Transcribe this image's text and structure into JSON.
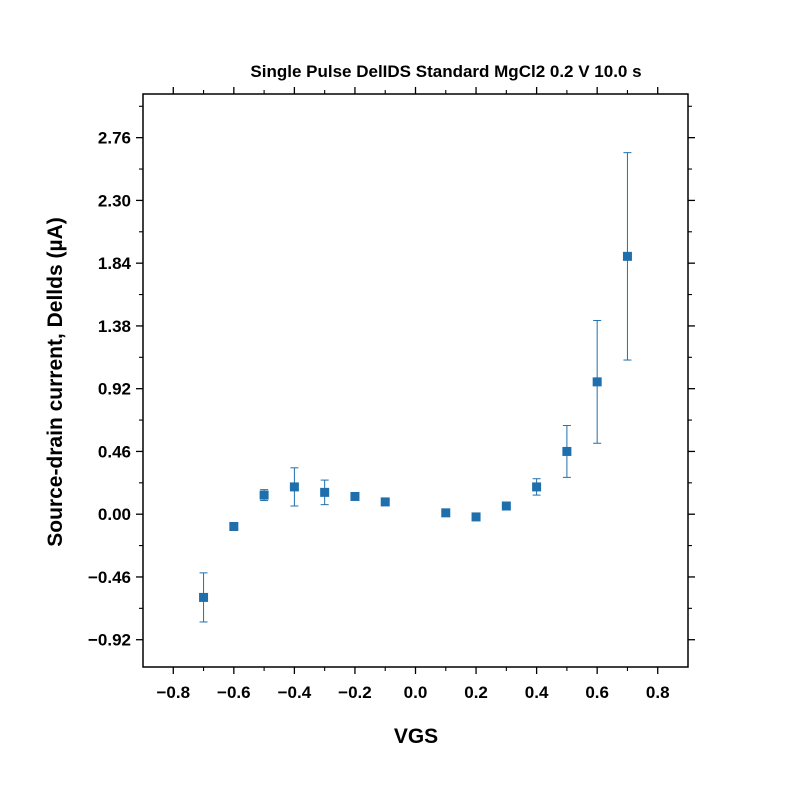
{
  "chart_data": {
    "type": "scatter",
    "title": "Single Pulse DelIDS Standard MgCl2 0.2 V 10.0 s",
    "xlabel": "VGS",
    "ylabel": "Source-drain current, Dellds (µA)",
    "xlim": [
      -0.9,
      0.9
    ],
    "ylim": [
      -1.12,
      3.08
    ],
    "x_ticks": [
      -0.8,
      -0.6,
      -0.4,
      -0.2,
      0.0,
      0.2,
      0.4,
      0.6,
      0.8
    ],
    "x_tick_labels": [
      "−0.8",
      "−0.6",
      "−0.4",
      "−0.2",
      "0.0",
      "0.2",
      "0.4",
      "0.6",
      "0.8"
    ],
    "y_ticks": [
      -0.92,
      -0.46,
      0.0,
      0.46,
      0.92,
      1.38,
      1.84,
      2.3,
      2.76
    ],
    "y_tick_labels": [
      "−0.92",
      "−0.46",
      "0.00",
      "0.46",
      "0.92",
      "1.38",
      "1.84",
      "2.30",
      "2.76"
    ],
    "grid": false,
    "marker_color": "#1f6fad",
    "points": [
      {
        "x": -0.7,
        "y": -0.61,
        "err": 0.18
      },
      {
        "x": -0.6,
        "y": -0.09,
        "err": 0.0
      },
      {
        "x": -0.5,
        "y": 0.14,
        "err": 0.04
      },
      {
        "x": -0.4,
        "y": 0.2,
        "err": 0.14
      },
      {
        "x": -0.3,
        "y": 0.16,
        "err": 0.09
      },
      {
        "x": -0.2,
        "y": 0.13,
        "err": 0.0
      },
      {
        "x": -0.1,
        "y": 0.09,
        "err": 0.0
      },
      {
        "x": 0.1,
        "y": 0.01,
        "err": 0.0
      },
      {
        "x": 0.2,
        "y": -0.02,
        "err": 0.0
      },
      {
        "x": 0.3,
        "y": 0.06,
        "err": 0.0
      },
      {
        "x": 0.4,
        "y": 0.2,
        "err": 0.06
      },
      {
        "x": 0.5,
        "y": 0.46,
        "err": 0.19
      },
      {
        "x": 0.6,
        "y": 0.97,
        "err": 0.45
      },
      {
        "x": 0.7,
        "y": 1.89,
        "err": 0.76
      }
    ]
  }
}
